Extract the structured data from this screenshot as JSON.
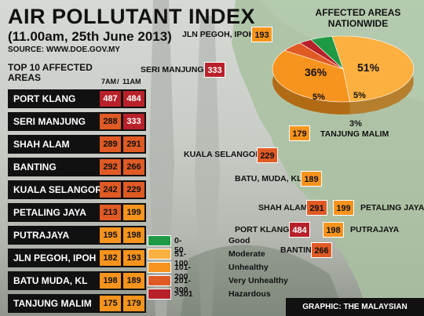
{
  "title": "AIR POLLUTANT INDEX",
  "subtitle": "(11.00am, 25th June 2013)",
  "source": "SOURCE: WWW.DOE.GOV.MY",
  "top10_label": "TOP 10 AFFECTED AREAS",
  "col_7am": "7AM",
  "col_sep": "/",
  "col_11am": "11AM",
  "pie_title": "AFFECTED AREAS NATIONWIDE",
  "credit": "GRAPHIC: THE MALAYSIAN INSIDER",
  "colors": {
    "good": "#1e9a45",
    "moderate": "#fbb040",
    "unhealthy": "#f7941d",
    "very_unhealthy": "#e05a24",
    "hazardous": "#b8212a"
  },
  "legend": [
    {
      "range": "0-50",
      "label": "Good",
      "color": "#1e9a45"
    },
    {
      "range": "51-100",
      "label": "Moderate",
      "color": "#fbb040"
    },
    {
      "range": "101-200",
      "label": "Unhealthy",
      "color": "#f7941d"
    },
    {
      "range": "201-300",
      "label": "Very Unhealthy",
      "color": "#e05a24"
    },
    {
      "range": ">301",
      "label": "Hazardous",
      "color": "#b8212a"
    }
  ],
  "chart_data": [
    {
      "type": "table",
      "title": "TOP 10 AFFECTED AREAS",
      "columns": [
        "7AM",
        "11AM"
      ],
      "rows": [
        {
          "area": "PORT KLANG",
          "am7": 487,
          "am11": 484
        },
        {
          "area": "SERI MANJUNG",
          "am7": 288,
          "am11": 333
        },
        {
          "area": "SHAH ALAM",
          "am7": 289,
          "am11": 291
        },
        {
          "area": "BANTING",
          "am7": 292,
          "am11": 266
        },
        {
          "area": "KUALA SELANGOR",
          "am7": 242,
          "am11": 229
        },
        {
          "area": "PETALING JAYA",
          "am7": 213,
          "am11": 199
        },
        {
          "area": "PUTRAJAYA",
          "am7": 195,
          "am11": 198
        },
        {
          "area": "JLN PEGOH, IPOH",
          "am7": 182,
          "am11": 193
        },
        {
          "area": "BATU MUDA, KL",
          "am7": 198,
          "am11": 189
        },
        {
          "area": "TANJUNG MALIM",
          "am7": 175,
          "am11": 179
        }
      ]
    },
    {
      "type": "pie",
      "title": "AFFECTED AREAS NATIONWIDE",
      "slices": [
        {
          "label": "51%",
          "value": 51,
          "category": "Moderate",
          "color": "#fbb040"
        },
        {
          "label": "36%",
          "value": 36,
          "category": "Unhealthy",
          "color": "#f7941d"
        },
        {
          "label": "5%",
          "value": 5,
          "category": "Very Unhealthy",
          "color": "#e05a24"
        },
        {
          "label": "3%",
          "value": 3,
          "category": "Hazardous",
          "color": "#b8212a"
        },
        {
          "label": "5%",
          "value": 5,
          "category": "Good",
          "color": "#1e9a45"
        }
      ]
    },
    {
      "type": "map",
      "labels": [
        {
          "name": "JLN PEGOH, IPOH",
          "value": 193
        },
        {
          "name": "SERI MANJUNG",
          "value": 333
        },
        {
          "name": "TANJUNG MALIM",
          "value": 179
        },
        {
          "name": "KUALA SELANGOR",
          "value": 229
        },
        {
          "name": "BATU, MUDA, KL",
          "value": 189
        },
        {
          "name": "SHAH ALAM",
          "value": 291
        },
        {
          "name": "PETALING JAYA",
          "value": 199
        },
        {
          "name": "PORT KLANG",
          "value": 484
        },
        {
          "name": "PUTRAJAYA",
          "value": 198
        },
        {
          "name": "BANTING",
          "value": 266
        }
      ]
    }
  ]
}
